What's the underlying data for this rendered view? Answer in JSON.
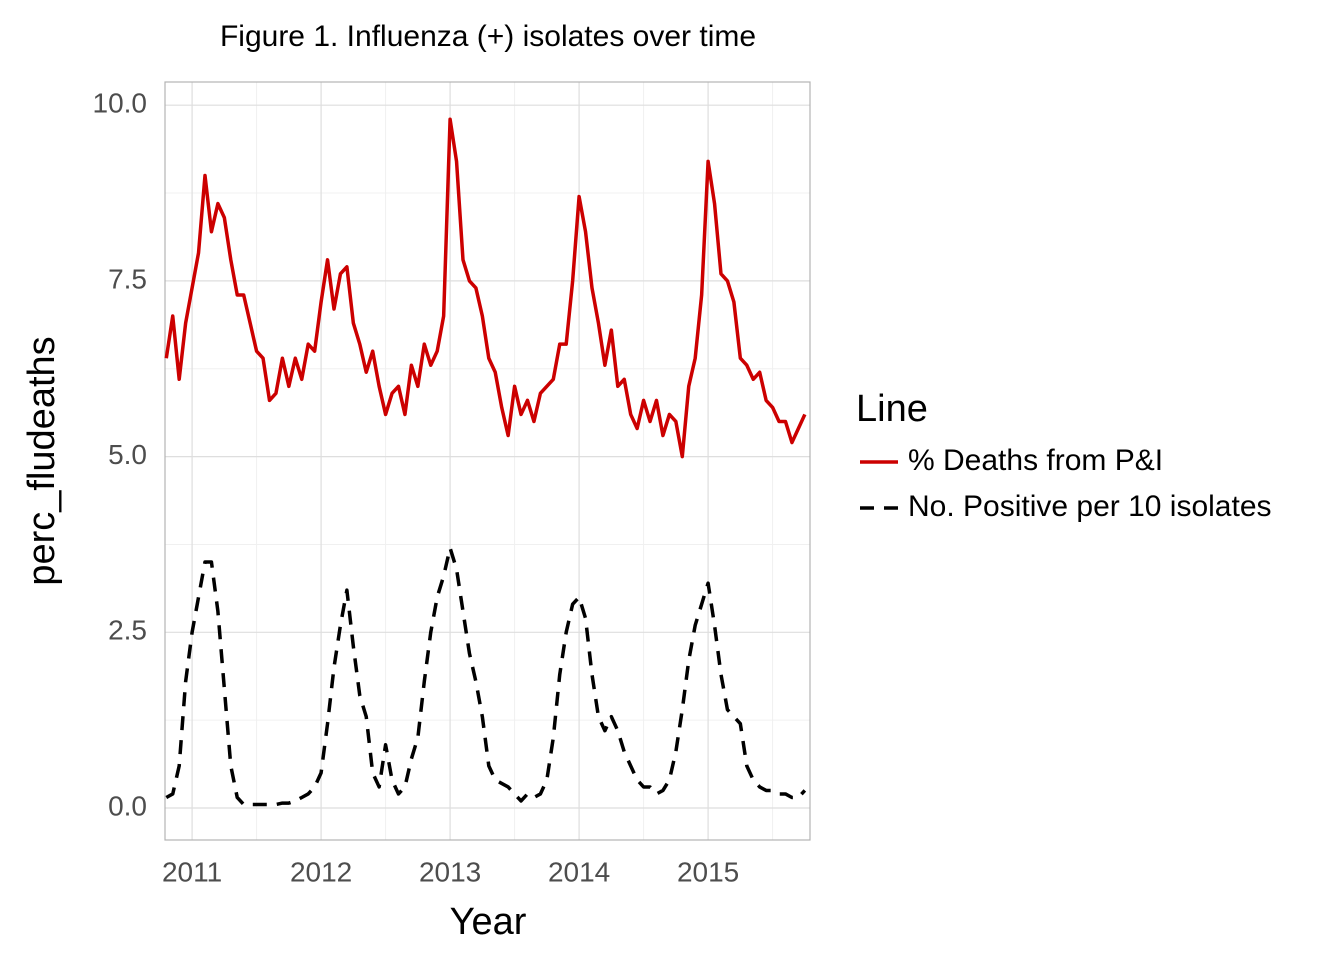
{
  "chart_data": {
    "type": "line",
    "title": "Figure 1. Influenza (+) isolates over time",
    "x_label": "Year",
    "y_label": "perc_fludeaths",
    "legend_title": "Line",
    "legend_position": "right",
    "grid": true,
    "xlim": [
      2010.79,
      2015.79
    ],
    "ylim": [
      -0.455,
      10.33
    ],
    "xticks": [
      2011,
      2012,
      2013,
      2014,
      2015
    ],
    "xminor_ticks": [
      2011.5,
      2012.5,
      2013.5,
      2014.5,
      2015.5
    ],
    "yticks": [
      {
        "value": 0,
        "label": "0.0"
      },
      {
        "value": 2.5,
        "label": "2.5"
      },
      {
        "value": 5,
        "label": "5.0"
      },
      {
        "value": 7.5,
        "label": "7.5"
      },
      {
        "value": 10,
        "label": "10.0"
      }
    ],
    "yminor_ticks": [
      1.25,
      3.75,
      6.25,
      8.75
    ],
    "x": [
      2010.8,
      2010.85,
      2010.9,
      2010.95,
      2011,
      2011.05,
      2011.1,
      2011.15,
      2011.2,
      2011.25,
      2011.3,
      2011.35,
      2011.4,
      2011.45,
      2011.5,
      2011.55,
      2011.6,
      2011.65,
      2011.7,
      2011.75,
      2011.8,
      2011.85,
      2011.9,
      2011.95,
      2012,
      2012.05,
      2012.1,
      2012.15,
      2012.2,
      2012.25,
      2012.3,
      2012.35,
      2012.4,
      2012.45,
      2012.5,
      2012.55,
      2012.6,
      2012.65,
      2012.7,
      2012.75,
      2012.8,
      2012.85,
      2012.9,
      2012.95,
      2013,
      2013.05,
      2013.1,
      2013.15,
      2013.2,
      2013.25,
      2013.3,
      2013.35,
      2013.4,
      2013.45,
      2013.5,
      2013.55,
      2013.6,
      2013.65,
      2013.7,
      2013.75,
      2013.8,
      2013.85,
      2013.9,
      2013.95,
      2014,
      2014.05,
      2014.1,
      2014.15,
      2014.2,
      2014.25,
      2014.3,
      2014.35,
      2014.4,
      2014.45,
      2014.5,
      2014.55,
      2014.6,
      2014.65,
      2014.7,
      2014.75,
      2014.8,
      2014.85,
      2014.9,
      2014.95,
      2015,
      2015.05,
      2015.1,
      2015.15,
      2015.2,
      2015.25,
      2015.3,
      2015.35,
      2015.4,
      2015.45,
      2015.5,
      2015.55,
      2015.6,
      2015.65,
      2015.7,
      2015.75
    ],
    "series": [
      {
        "name": "% Deaths from P&I",
        "color": "#cc0000",
        "dash": "solid",
        "values": [
          6.4,
          7.0,
          6.1,
          6.9,
          7.4,
          7.9,
          9.0,
          8.2,
          8.6,
          8.4,
          7.8,
          7.3,
          7.3,
          6.9,
          6.5,
          6.4,
          5.8,
          5.9,
          6.4,
          6.0,
          6.4,
          6.1,
          6.6,
          6.5,
          7.2,
          7.8,
          7.1,
          7.6,
          7.7,
          6.9,
          6.6,
          6.2,
          6.5,
          6.0,
          5.6,
          5.9,
          6.0,
          5.6,
          6.3,
          6.0,
          6.6,
          6.3,
          6.5,
          7.0,
          9.8,
          9.2,
          7.8,
          7.5,
          7.4,
          7.0,
          6.4,
          6.2,
          5.7,
          5.3,
          6.0,
          5.6,
          5.8,
          5.5,
          5.9,
          6.0,
          6.1,
          6.6,
          6.6,
          7.5,
          8.7,
          8.2,
          7.4,
          6.9,
          6.3,
          6.8,
          6.0,
          6.1,
          5.6,
          5.4,
          5.8,
          5.5,
          5.8,
          5.3,
          5.6,
          5.5,
          5.0,
          6.0,
          6.4,
          7.3,
          9.2,
          8.6,
          7.6,
          7.5,
          7.2,
          6.4,
          6.3,
          6.1,
          6.2,
          5.8,
          5.7,
          5.5,
          5.5,
          5.2,
          5.4,
          5.6
        ]
      },
      {
        "name": "No. Positive per 10 isolates",
        "color": "#000000",
        "dash": "dashed",
        "values": [
          0.15,
          0.2,
          0.6,
          1.8,
          2.5,
          3.0,
          3.5,
          3.5,
          2.8,
          1.7,
          0.6,
          0.15,
          0.05,
          0.05,
          0.05,
          0.05,
          0.05,
          0.05,
          0.07,
          0.07,
          0.1,
          0.15,
          0.2,
          0.3,
          0.5,
          1.2,
          2.0,
          2.6,
          3.1,
          2.3,
          1.6,
          1.3,
          0.5,
          0.3,
          0.9,
          0.4,
          0.2,
          0.3,
          0.7,
          1.0,
          1.8,
          2.5,
          3.0,
          3.3,
          3.7,
          3.4,
          2.8,
          2.2,
          1.8,
          1.3,
          0.6,
          0.4,
          0.35,
          0.3,
          0.2,
          0.1,
          0.2,
          0.15,
          0.2,
          0.4,
          1.0,
          1.9,
          2.5,
          2.9,
          3.0,
          2.7,
          1.9,
          1.3,
          1.1,
          1.3,
          1.1,
          0.8,
          0.6,
          0.4,
          0.3,
          0.3,
          0.2,
          0.25,
          0.4,
          0.8,
          1.4,
          2.1,
          2.6,
          2.9,
          3.2,
          2.6,
          1.9,
          1.4,
          1.3,
          1.2,
          0.6,
          0.4,
          0.3,
          0.25,
          0.25,
          0.2,
          0.2,
          0.15,
          0.15,
          0.25
        ]
      }
    ]
  }
}
